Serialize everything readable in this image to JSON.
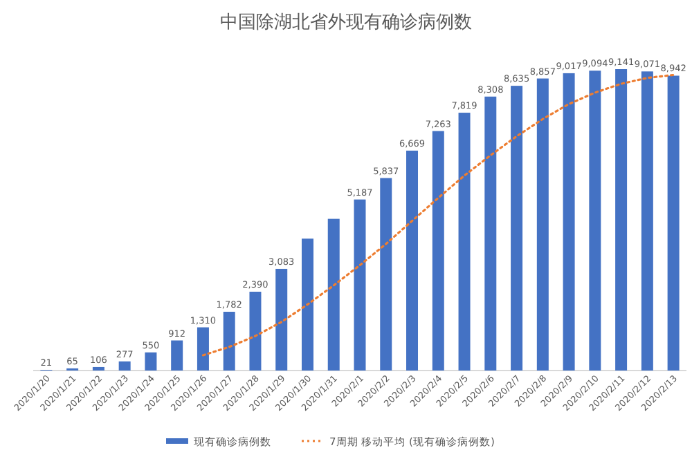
{
  "chart_data": {
    "type": "bar",
    "title": "中国除湖北省外现有确诊病例数",
    "categories": [
      "2020/1/20",
      "2020/1/21",
      "2020/1/22",
      "2020/1/23",
      "2020/1/24",
      "2020/1/25",
      "2020/1/26",
      "2020/1/27",
      "2020/1/28",
      "2020/1/29",
      "2020/1/30",
      "2020/1/31",
      "2020/2/1",
      "2020/2/2",
      "2020/2/3",
      "2020/2/4",
      "2020/2/5",
      "2020/2/6",
      "2020/2/7",
      "2020/2/8",
      "2020/2/9",
      "2020/2/10",
      "2020/2/11",
      "2020/2/12",
      "2020/2/13"
    ],
    "series": [
      {
        "name": "现有确诊病例数",
        "color": "#4472c4",
        "values": [
          21,
          65,
          106,
          277,
          550,
          912,
          1310,
          1782,
          2390,
          3083,
          4000,
          4600,
          5187,
          5837,
          6669,
          7263,
          7819,
          8308,
          8635,
          8857,
          9017,
          9094,
          9141,
          9071,
          8942
        ],
        "value_labels": [
          "21",
          "65",
          "106",
          "277",
          "550",
          "912",
          "1,310",
          "1,782",
          "2,390",
          "3,083",
          null,
          null,
          "5,187",
          "5,837",
          "6,669",
          "7,263",
          "7,819",
          "8,308",
          "8,635",
          "8,857",
          "9,017",
          "9,094",
          "9,141",
          "9,071",
          "8,942"
        ]
      },
      {
        "name": "7周期 移动平均 (现有确诊病例数)",
        "type": "line",
        "color": "#ed7d31",
        "line_style": "dotted",
        "values": [
          null,
          null,
          null,
          null,
          null,
          null,
          463,
          715,
          1047,
          1472,
          2004,
          2582,
          3193,
          3840,
          4538,
          5234,
          5911,
          6526,
          7103,
          7627,
          8081,
          8428,
          8696,
          8875,
          8964
        ]
      }
    ],
    "legend": "bottom"
  }
}
